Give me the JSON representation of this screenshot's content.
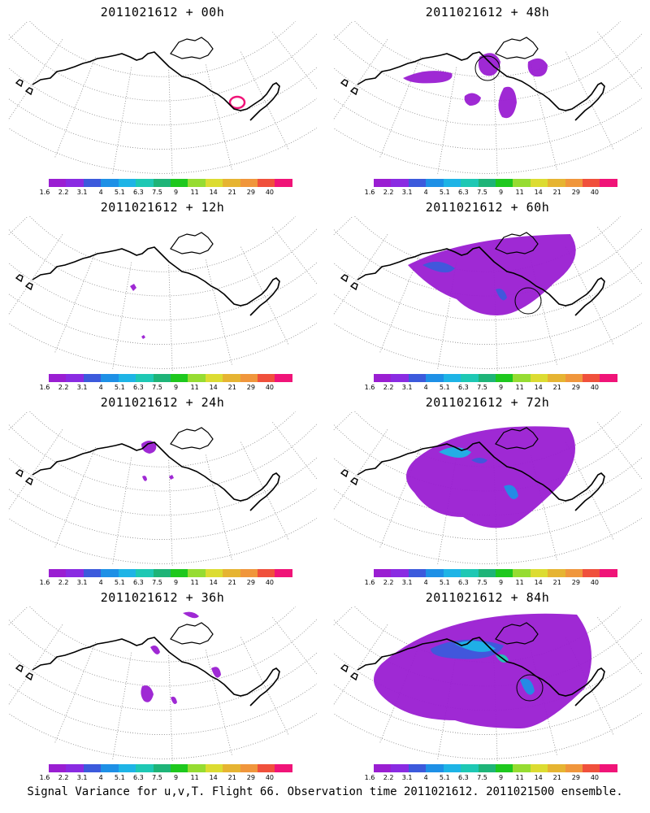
{
  "figure": {
    "footer": "Signal Variance for u,v,T. Flight 66. Observation time 2011021612. 2011021500 ensemble."
  },
  "colorbar": {
    "labels": [
      "1.6",
      "2.2",
      "3.1",
      "4",
      "5.1",
      "6.3",
      "7.5",
      "9",
      "11",
      "14",
      "21",
      "29",
      "40"
    ],
    "colors": [
      "#9a1ed2",
      "#8a2be2",
      "#3c5adc",
      "#1e90e6",
      "#1eb4e6",
      "#1ec8b4",
      "#1eb478",
      "#1ec81e",
      "#96dc32",
      "#dcdc32",
      "#e6b432",
      "#f0963c",
      "#f0503c",
      "#f01478"
    ]
  },
  "panels": [
    {
      "title": "2011021612 + 00h",
      "signal_level": "none",
      "observation_circle": false
    },
    {
      "title": "2011021612 + 48h",
      "signal_level": "moderate",
      "observation_circle": true
    },
    {
      "title": "2011021612 + 12h",
      "signal_level": "trace",
      "observation_circle": false
    },
    {
      "title": "2011021612 + 60h",
      "signal_level": "moderate-high",
      "observation_circle": true
    },
    {
      "title": "2011021612 + 24h",
      "signal_level": "low",
      "observation_circle": false
    },
    {
      "title": "2011021612 + 72h",
      "signal_level": "high",
      "observation_circle": false
    },
    {
      "title": "2011021612 + 36h",
      "signal_level": "low",
      "observation_circle": false
    },
    {
      "title": "2011021612 + 84h",
      "signal_level": "very-high",
      "observation_circle": true
    }
  ],
  "chart_data": {
    "type": "heatmap",
    "variable": "Signal Variance for u,v,T",
    "flight": "66",
    "observation_time": "2011021612",
    "ensemble": "2011021500",
    "lead_times_h": [
      0,
      48,
      12,
      60,
      24,
      72,
      36,
      84
    ],
    "contour_levels": [
      1.6,
      2.2,
      3.1,
      4,
      5.1,
      6.3,
      7.5,
      9,
      11,
      14,
      21,
      29,
      40
    ]
  }
}
